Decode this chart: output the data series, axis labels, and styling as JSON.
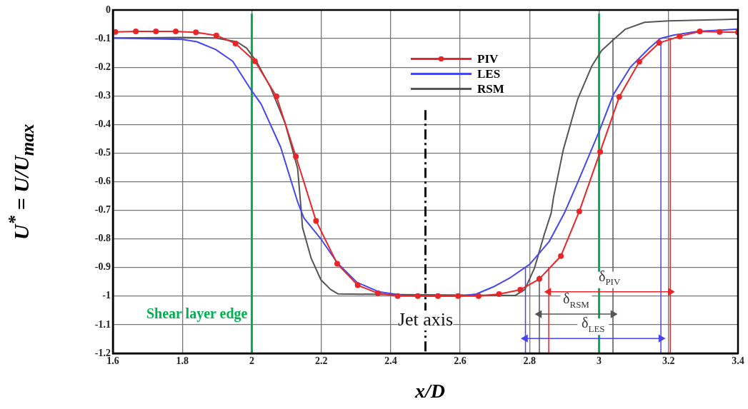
{
  "chart_data": {
    "type": "line",
    "xlabel": "x/D",
    "ylabel": "U$^{*}$ = U/U$_{max}$",
    "xlim": [
      1.6,
      3.4
    ],
    "xticks": [
      1.6,
      1.8,
      2,
      2.2,
      2.4,
      2.6,
      2.8,
      3,
      3.2,
      3.4
    ],
    "ylim": [
      -1.2,
      0
    ],
    "yticks": [
      0,
      -0.1,
      -0.2,
      -0.3,
      -0.4,
      -0.5,
      -0.6,
      -0.7,
      -0.8,
      -0.9,
      -1,
      -1.1,
      -1.2
    ],
    "grid": true,
    "legend": "top",
    "line_style": "solid",
    "series": [
      {
        "name": "PIV",
        "color": "#e8262a",
        "marker": "circle",
        "x": [
          1.607,
          1.666,
          1.724,
          1.781,
          1.839,
          1.898,
          1.953,
          2.009,
          2.071,
          2.127,
          2.185,
          2.246,
          2.305,
          2.363,
          2.42,
          2.478,
          2.536,
          2.594,
          2.653,
          2.712,
          2.773,
          2.828,
          2.89,
          2.943,
          3.003,
          3.058,
          3.116,
          3.173,
          3.232,
          3.29,
          3.347,
          3.4
        ],
        "values": [
          -0.077,
          -0.075,
          -0.075,
          -0.075,
          -0.078,
          -0.089,
          -0.117,
          -0.179,
          -0.302,
          -0.512,
          -0.737,
          -0.887,
          -0.962,
          -0.99,
          -1.0,
          -1.0,
          -1.0,
          -1.0,
          -1.0,
          -0.993,
          -0.978,
          -0.94,
          -0.86,
          -0.704,
          -0.496,
          -0.304,
          -0.181,
          -0.115,
          -0.092,
          -0.075,
          -0.077,
          -0.078
        ]
      },
      {
        "name": "LES",
        "color": "#4646f0",
        "marker": "none",
        "x": [
          1.6,
          1.8,
          1.842,
          1.896,
          1.945,
          2.0,
          2.027,
          2.083,
          2.132,
          2.15,
          2.2,
          2.247,
          2.303,
          2.366,
          2.435,
          2.5,
          2.6,
          2.646,
          2.695,
          2.745,
          2.8,
          2.856,
          2.9,
          2.938,
          3.0,
          3.041,
          3.09,
          3.145,
          3.176,
          3.214,
          3.283,
          3.4
        ],
        "values": [
          -0.098,
          -0.103,
          -0.111,
          -0.138,
          -0.179,
          -0.283,
          -0.329,
          -0.479,
          -0.671,
          -0.727,
          -0.802,
          -0.885,
          -0.952,
          -0.985,
          -0.997,
          -1.0,
          -1.0,
          -0.993,
          -0.968,
          -0.935,
          -0.889,
          -0.81,
          -0.71,
          -0.604,
          -0.425,
          -0.296,
          -0.2,
          -0.133,
          -0.1,
          -0.088,
          -0.075,
          -0.067
        ]
      },
      {
        "name": "RSM",
        "color": "#555555",
        "marker": "none",
        "x": [
          1.6,
          1.8,
          1.896,
          1.957,
          1.985,
          2.013,
          2.054,
          2.096,
          2.132,
          2.142,
          2.146,
          2.171,
          2.199,
          2.227,
          2.248,
          2.43,
          2.758,
          2.786,
          2.814,
          2.842,
          2.862,
          2.869,
          2.897,
          2.938,
          2.979,
          3.007,
          3.041,
          3.076,
          3.131,
          3.2,
          3.4
        ],
        "values": [
          -0.098,
          -0.096,
          -0.098,
          -0.111,
          -0.133,
          -0.179,
          -0.271,
          -0.396,
          -0.554,
          -0.696,
          -0.76,
          -0.868,
          -0.943,
          -0.977,
          -0.992,
          -0.995,
          -0.998,
          -0.977,
          -0.902,
          -0.785,
          -0.71,
          -0.654,
          -0.488,
          -0.313,
          -0.196,
          -0.142,
          -0.104,
          -0.067,
          -0.043,
          -0.038,
          -0.032
        ]
      },
      {
        "color": "#e8262a",
        "marker": "triangle",
        "x": [
          2.855,
          3.205
        ],
        "values": [
          -0.985,
          -0.985
        ]
      },
      {
        "color": "#e8262a",
        "marker": "none",
        "x": [
          2.855,
          2.855
        ],
        "values": [
          -0.9,
          -1.2
        ]
      },
      {
        "color": "#e8262a",
        "marker": "none",
        "x": [
          3.205,
          3.205
        ],
        "values": [
          -0.1,
          -1.2
        ]
      },
      {
        "color": "#555555",
        "marker": "triangle",
        "x": [
          2.828,
          3.04
        ],
        "values": [
          -1.063,
          -1.063
        ]
      },
      {
        "color": "#555555",
        "marker": "none",
        "x": [
          2.828,
          2.828
        ],
        "values": [
          -0.93,
          -1.2
        ]
      },
      {
        "color": "#555555",
        "marker": "none",
        "x": [
          3.04,
          3.04
        ],
        "values": [
          -0.1,
          -1.2
        ]
      },
      {
        "color": "#4646f0",
        "marker": "triangle",
        "x": [
          2.788,
          3.178
        ],
        "values": [
          -1.148,
          -1.148
        ]
      },
      {
        "color": "#4646f0",
        "marker": "none",
        "x": [
          2.788,
          2.788
        ],
        "values": [
          -0.9,
          -1.2
        ]
      },
      {
        "color": "#4646f0",
        "marker": "none",
        "x": [
          3.178,
          3.178
        ],
        "values": [
          -0.12,
          -1.2
        ]
      },
      {
        "color": "#00b050",
        "marker": "none",
        "x": [
          2,
          2
        ],
        "values": [
          -0.015,
          -1.2
        ]
      },
      {
        "color": "#00b050",
        "marker": "none",
        "x": [
          3,
          3
        ],
        "values": [
          -0.015,
          -1.2
        ]
      },
      {
        "color": "#111111",
        "marker": "none",
        "line_style": "dashed",
        "x": [
          2.5,
          2.5
        ],
        "values": [
          -0.35,
          -1.2
        ]
      }
    ],
    "annotations": [
      {
        "text": "Shear layer edge",
        "x": 2,
        "y": -1.065
      },
      {
        "text": "Jet axis",
        "x": 2.5,
        "y": -1.085
      },
      {
        "text": "δ$_{PIV}$",
        "x": 3.03,
        "y": -0.985
      },
      {
        "text": "δ$_{RSM}$",
        "x": 2.934,
        "y": -1.063
      },
      {
        "text": "δ$_{LES}$",
        "x": 2.983,
        "y": -1.148
      }
    ]
  }
}
